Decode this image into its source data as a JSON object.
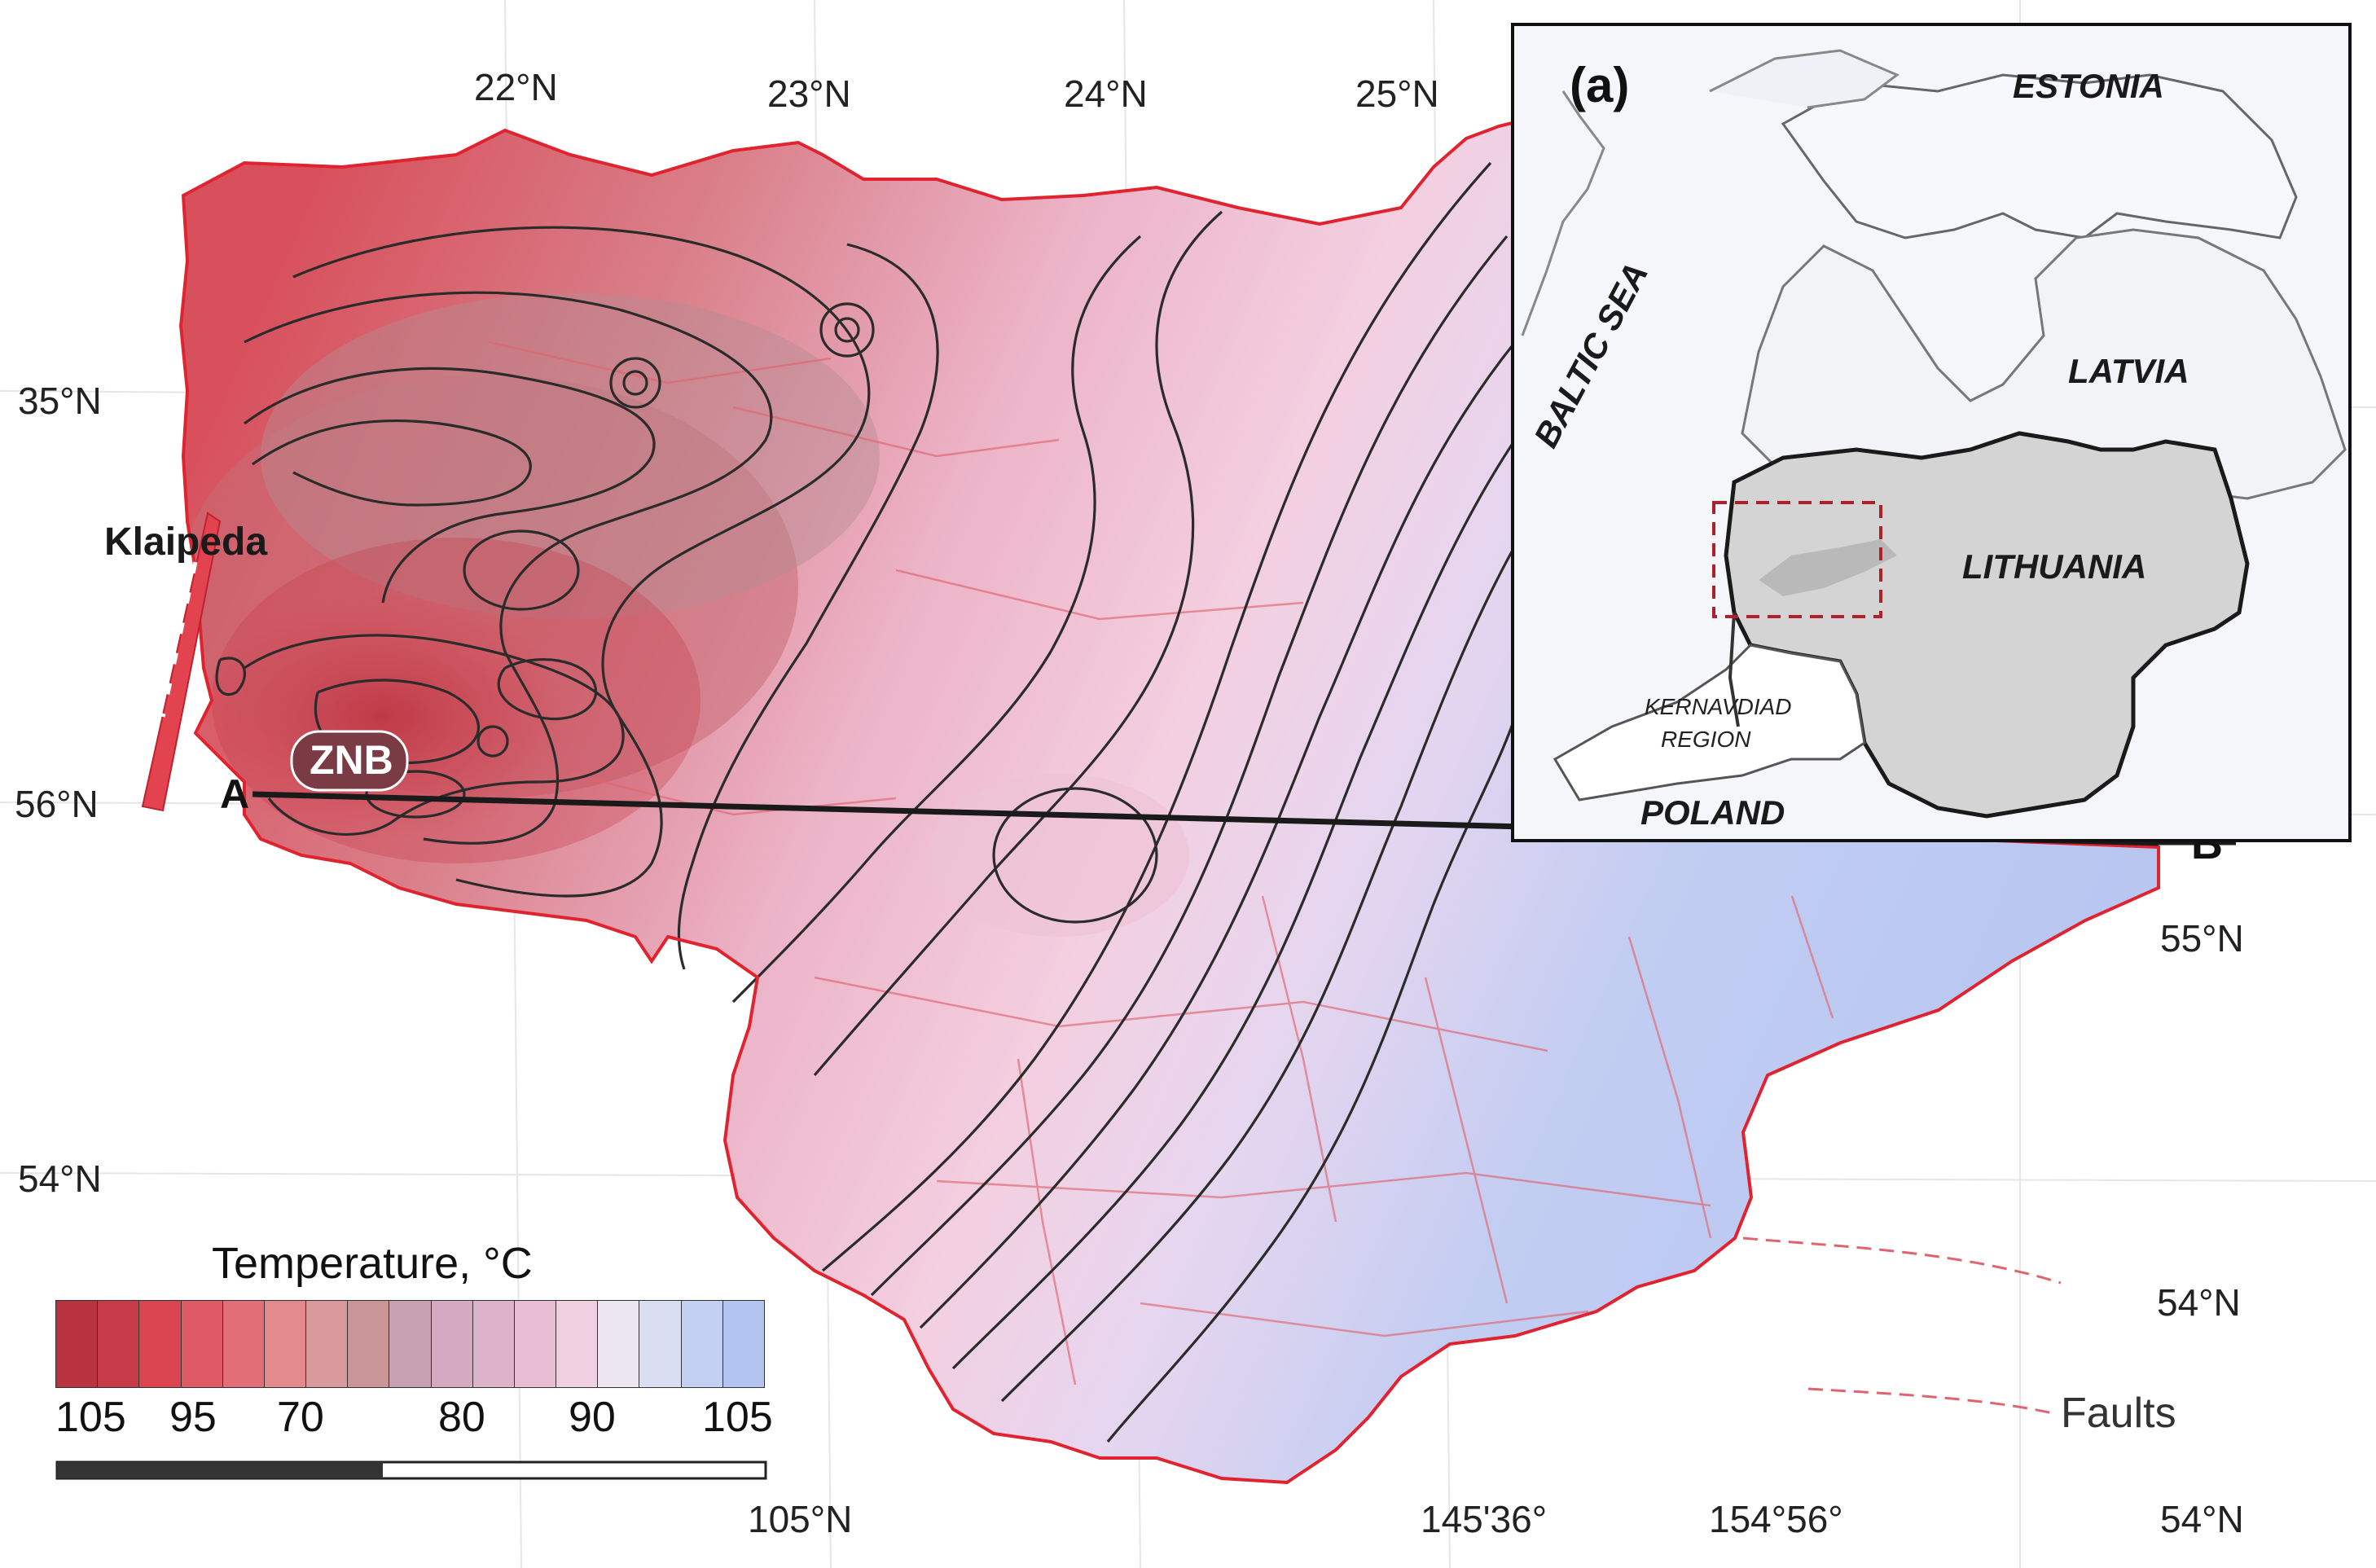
{
  "map": {
    "lat_top": [
      "22°N",
      "23°N",
      "24°N",
      "25°N"
    ],
    "lat_left": [
      "35°N",
      "56°N",
      "54°N"
    ],
    "lat_right": [
      "55°N",
      "54°N",
      "54°N"
    ],
    "bottom": [
      "105°N",
      "145'36°",
      "154°56°"
    ],
    "places": {
      "klaipeda": "Klaipeda",
      "znb": "ZNB",
      "point_a": "A",
      "point_b": "B"
    },
    "faults_label": "Faults"
  },
  "legend": {
    "title": "Temperature, °C",
    "ticks": [
      "105",
      "95",
      "70",
      "80",
      "90",
      "105"
    ],
    "colors": [
      "#b8323f",
      "#c73a47",
      "#d94450",
      "#e05a66",
      "#e26f78",
      "#e38a8f",
      "#d89a9c",
      "#c99596",
      "#c7a1b1",
      "#d4aac2",
      "#ddb3cc",
      "#e8bcd4",
      "#f0cfe0",
      "#ece6f2",
      "#d9def2",
      "#c4d0f2",
      "#b4c4f0"
    ]
  },
  "inset": {
    "panel_label": "(a)",
    "countries": {
      "estonia": "ESTONIA",
      "latvia": "LATVIA",
      "lithuania": "LITHUANIA",
      "poland": "POLAND",
      "baltic_sea": "BALTIC SEA"
    },
    "region_label_1": "KERNAVDIAD",
    "region_label_2": "REGION"
  }
}
